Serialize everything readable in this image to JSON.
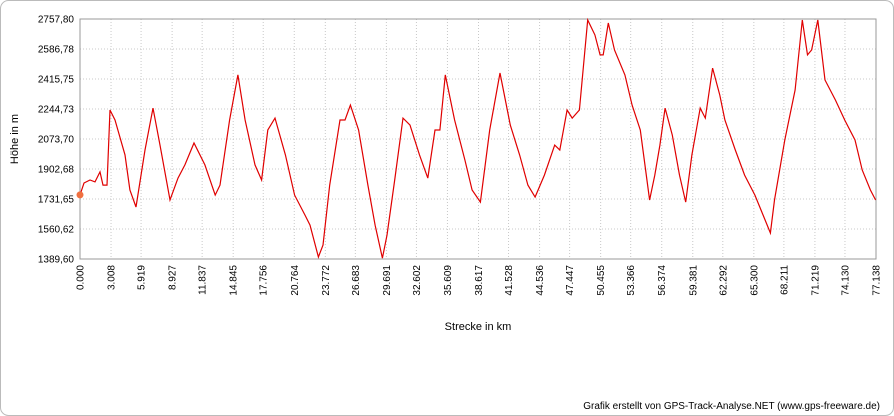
{
  "chart_data": {
    "type": "line",
    "y_label": "Höhe in m",
    "x_label": "Strecke in km",
    "footer": "Grafik erstellt von GPS-Track-Analyse.NET (www.gps-freeware.de)",
    "color": "#e00000",
    "start_marker_color": "#f07040",
    "grid": true,
    "ylim": [
      1389.6,
      2757.8
    ],
    "yticks": [
      {
        "value": 1389.6,
        "label": "1389,60"
      },
      {
        "value": 1560.62,
        "label": "1560,62"
      },
      {
        "value": 1731.65,
        "label": "1731,65"
      },
      {
        "value": 1902.68,
        "label": "1902,68"
      },
      {
        "value": 2073.7,
        "label": "2073,70"
      },
      {
        "value": 2244.73,
        "label": "2244,73"
      },
      {
        "value": 2415.75,
        "label": "2415,75"
      },
      {
        "value": 2586.78,
        "label": "2586,78"
      },
      {
        "value": 2757.8,
        "label": "2757,80"
      }
    ],
    "xlim": [
      0,
      77.138
    ],
    "xticks": [
      {
        "value": 0,
        "label": "0.000"
      },
      3.008,
      5.919,
      8.927,
      11.837,
      14.845,
      17.756,
      20.764,
      23.772,
      26.683,
      29.691,
      32.602,
      35.609,
      38.617,
      41.528,
      44.536,
      47.447,
      50.455,
      53.366,
      56.374,
      59.381,
      62.292,
      {
        "value": 65.3,
        "label": "65.300"
      },
      68.211,
      71.219,
      {
        "value": 74.13,
        "label": "74.130"
      },
      77.138
    ],
    "x": [
      0,
      0.39,
      0.97,
      1.45,
      1.94,
      2.23,
      2.62,
      2.91,
      3.39,
      4.36,
      4.84,
      5.43,
      6.3,
      7.07,
      7.75,
      8.72,
      9.5,
      10.17,
      11.05,
      12.1,
      13.1,
      13.57,
      14.5,
      15.3,
      16.0,
      16.96,
      17.6,
      18.2,
      18.9,
      19.9,
      20.8,
      21.8,
      22.29,
      23.1,
      23.55,
      24.2,
      25.2,
      25.68,
      26.2,
      27.0,
      27.9,
      28.6,
      29.3,
      29.75,
      30.5,
      31.3,
      31.98,
      32.9,
      33.7,
      34.4,
      34.88,
      35.4,
      36.3,
      37.3,
      38.0,
      38.8,
      39.7,
      40.7,
      41.7,
      42.6,
      43.4,
      44.1,
      45.0,
      46.0,
      46.5,
      47.2,
      47.7,
      48.4,
      49.2,
      49.9,
      50.4,
      50.7,
      51.2,
      51.8,
      52.8,
      53.5,
      54.3,
      55.2,
      55.7,
      56.2,
      56.7,
      57.4,
      58.1,
      58.7,
      59.3,
      60.1,
      60.6,
      61.3,
      62.0,
      62.5,
      63.5,
      64.4,
      65.4,
      66.2,
      66.9,
      67.3,
      68.3,
      69.3,
      70.0,
      70.5,
      70.9,
      71.5,
      72.2,
      73.2,
      74.1,
      75.1,
      75.8,
      76.6,
      77.1
    ],
    "values": [
      1755,
      1823,
      1840,
      1829,
      1886,
      1811,
      1811,
      2239,
      2182,
      1983,
      1783,
      1686,
      2011,
      2250,
      2039,
      1726,
      1851,
      1926,
      2051,
      1926,
      1754,
      1811,
      2182,
      2439,
      2182,
      1926,
      1840,
      2125,
      2193,
      1983,
      1754,
      1640,
      1583,
      1401,
      1469,
      1811,
      2182,
      2182,
      2267,
      2125,
      1811,
      1583,
      1395,
      1526,
      1840,
      2193,
      2153,
      1983,
      1851,
      2125,
      2125,
      2439,
      2182,
      1954,
      1783,
      1714,
      2125,
      2450,
      2153,
      1983,
      1811,
      1743,
      1868,
      2039,
      2011,
      2239,
      2193,
      2239,
      2752,
      2667,
      2553,
      2553,
      2735,
      2581,
      2439,
      2267,
      2125,
      1726,
      1868,
      2039,
      2250,
      2096,
      1868,
      1714,
      1983,
      2250,
      2193,
      2478,
      2324,
      2182,
      2011,
      1868,
      1754,
      1640,
      1538,
      1726,
      2068,
      2353,
      2752,
      2553,
      2581,
      2752,
      2410,
      2296,
      2182,
      2068,
      1897,
      1783,
      1726
    ]
  }
}
